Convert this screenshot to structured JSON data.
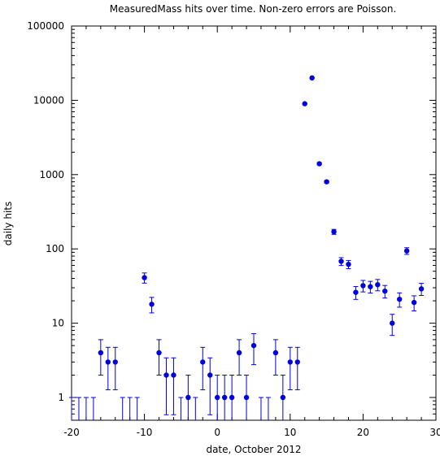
{
  "chart_data": {
    "type": "scatter",
    "title": "MeasuredMass hits over time. Non-zero errors are Poisson.",
    "xlabel": "date, October 2012",
    "ylabel": "daily hits",
    "xlim": [
      -20,
      30
    ],
    "ylim": [
      0.5,
      100000
    ],
    "yscale": "log",
    "grid": false,
    "legend": "none",
    "x_ticks": [
      "-20",
      "-10",
      "0",
      "10",
      "20",
      "30"
    ],
    "y_ticks": [
      "1",
      "10",
      "100",
      "1000",
      "10000",
      "100000"
    ],
    "point_color": "#0000e0",
    "series": [
      {
        "x": [
          -20,
          -19,
          -18,
          -17,
          -16,
          -15,
          -14,
          -13,
          -12,
          -11,
          -10,
          -9,
          -8,
          -7,
          -6,
          -5,
          -4,
          -3,
          -2,
          -1,
          0,
          1,
          2,
          3,
          4,
          5,
          6,
          7,
          8,
          9,
          10,
          11,
          12,
          13,
          14,
          15,
          16,
          17,
          18,
          19,
          20,
          21,
          22,
          23,
          24,
          25,
          26,
          27,
          28
        ],
        "y": [
          0,
          0,
          0,
          0,
          4,
          3,
          3,
          0,
          0,
          0,
          41,
          18,
          4,
          2,
          2,
          0,
          1,
          0,
          3,
          2,
          1,
          1,
          1,
          4,
          1,
          5,
          0,
          0,
          4,
          1,
          3,
          3,
          9000,
          20000,
          1400,
          800,
          170,
          68,
          62,
          26,
          32,
          31,
          33,
          27,
          10,
          21,
          94,
          19,
          29
        ]
      }
    ]
  }
}
